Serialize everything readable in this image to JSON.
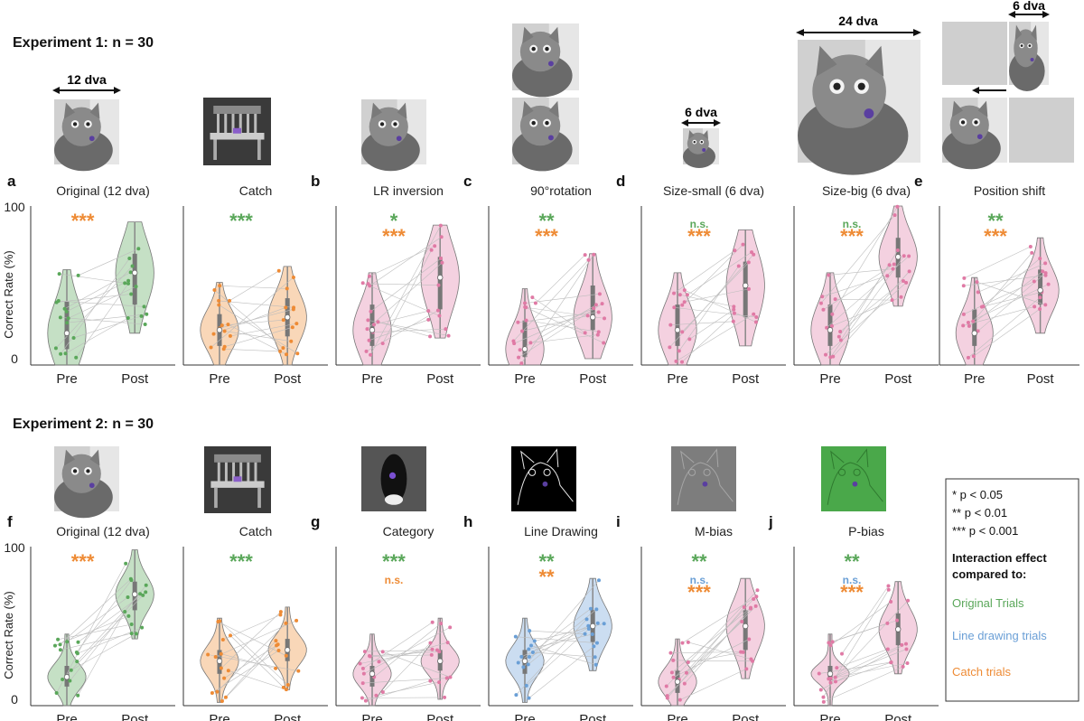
{
  "experiment1": {
    "title": "Experiment 1: n = 30"
  },
  "experiment2": {
    "title": "Experiment 2: n = 30"
  },
  "dims": {
    "d12": "12 dva",
    "d6": "6 dva",
    "d24": "24 dva",
    "d6b": "6 dva"
  },
  "legend": {
    "lines": [
      "* p < 0.05",
      "** p < 0.01",
      "*** p < 0.001"
    ],
    "header1": "Interaction effect",
    "header2": "compared to:",
    "items": [
      {
        "label": "Original Trials",
        "color": "#5aa75a"
      },
      {
        "label": "Line drawing trials",
        "color": "#6a9fd6"
      },
      {
        "label": "Catch trials",
        "color": "#ee8b35"
      }
    ]
  },
  "colors": {
    "green": "#5aa75a",
    "orange": "#ee8b35",
    "pink": "#e07aa5",
    "blue": "#6a9fd6"
  },
  "chart_data": [
    {
      "type": "violin",
      "letter": "a",
      "title": "Original (12 dva)",
      "ylabel": "Correct Rate (%)",
      "ylim": [
        0,
        100
      ],
      "yticks": [
        "0",
        "100"
      ],
      "categories": [
        "Pre",
        "Post"
      ],
      "series": [
        {
          "values": [
            {
              "median": 20,
              "q1": 10,
              "q3": 40
            },
            {
              "median": 58,
              "q1": 38,
              "q3": 70
            }
          ]
        }
      ],
      "annotations": [
        {
          "text": "***",
          "color": "orange"
        }
      ]
    },
    {
      "type": "violin",
      "letter": "",
      "title": "Catch",
      "ylim": [
        0,
        100
      ],
      "categories": [
        "Pre",
        "Post"
      ],
      "series": [
        {
          "values": [
            {
              "median": 22,
              "q1": 12,
              "q3": 32
            },
            {
              "median": 30,
              "q1": 18,
              "q3": 42
            }
          ]
        }
      ],
      "annotations": [
        {
          "text": "***",
          "color": "green"
        }
      ]
    },
    {
      "type": "violin",
      "letter": "b",
      "title": "LR inversion",
      "ylim": [
        0,
        100
      ],
      "categories": [
        "Pre",
        "Post"
      ],
      "series": [
        {
          "values": [
            {
              "median": 22,
              "q1": 12,
              "q3": 38
            },
            {
              "median": 55,
              "q1": 35,
              "q3": 68
            }
          ]
        }
      ],
      "annotations": [
        {
          "text": "*",
          "color": "green"
        },
        {
          "text": "***",
          "color": "orange"
        }
      ]
    },
    {
      "type": "violin",
      "letter": "c",
      "title": "90°rotation",
      "ylim": [
        0,
        100
      ],
      "categories": [
        "Pre",
        "Post"
      ],
      "series": [
        {
          "values": [
            {
              "median": 10,
              "q1": 5,
              "q3": 28
            },
            {
              "median": 30,
              "q1": 22,
              "q3": 50
            }
          ]
        }
      ],
      "annotations": [
        {
          "text": "**",
          "color": "green"
        },
        {
          "text": "***",
          "color": "orange"
        }
      ]
    },
    {
      "type": "violin",
      "letter": "d",
      "title": "Size-small (6 dva)",
      "ylim": [
        0,
        100
      ],
      "categories": [
        "Pre",
        "Post"
      ],
      "series": [
        {
          "values": [
            {
              "median": 22,
              "q1": 12,
              "q3": 38
            },
            {
              "median": 50,
              "q1": 30,
              "q3": 65
            }
          ]
        }
      ],
      "annotations": [
        {
          "text": "n.s.",
          "color": "green"
        },
        {
          "text": "***",
          "color": "orange"
        }
      ]
    },
    {
      "type": "violin",
      "letter": "",
      "title": "Size-big (6 dva)",
      "ylim": [
        0,
        100
      ],
      "categories": [
        "Pre",
        "Post"
      ],
      "series": [
        {
          "values": [
            {
              "median": 22,
              "q1": 12,
              "q3": 38
            },
            {
              "median": 68,
              "q1": 55,
              "q3": 80
            }
          ]
        }
      ],
      "annotations": [
        {
          "text": "n.s.",
          "color": "green"
        },
        {
          "text": "***",
          "color": "orange"
        }
      ]
    },
    {
      "type": "violin",
      "letter": "e",
      "title": "Position shift",
      "ylim": [
        0,
        100
      ],
      "categories": [
        "Pre",
        "Post"
      ],
      "series": [
        {
          "values": [
            {
              "median": 20,
              "q1": 12,
              "q3": 35
            },
            {
              "median": 47,
              "q1": 38,
              "q3": 60
            }
          ]
        }
      ],
      "annotations": [
        {
          "text": "**",
          "color": "green"
        },
        {
          "text": "***",
          "color": "orange"
        }
      ]
    },
    {
      "type": "violin",
      "letter": "f",
      "title": "Original (12 dva)",
      "ylabel": "Correct Rate (%)",
      "ylim": [
        0,
        100
      ],
      "yticks": [
        "0",
        "100"
      ],
      "categories": [
        "Pre",
        "Post"
      ],
      "series": [
        {
          "values": [
            {
              "median": 18,
              "q1": 12,
              "q3": 25
            },
            {
              "median": 70,
              "q1": 60,
              "q3": 78
            }
          ]
        }
      ],
      "annotations": [
        {
          "text": "***",
          "color": "orange"
        }
      ]
    },
    {
      "type": "violin",
      "letter": "",
      "title": "Catch",
      "ylim": [
        0,
        100
      ],
      "categories": [
        "Pre",
        "Post"
      ],
      "series": [
        {
          "values": [
            {
              "median": 28,
              "q1": 20,
              "q3": 35
            },
            {
              "median": 35,
              "q1": 28,
              "q3": 42
            }
          ]
        }
      ],
      "annotations": [
        {
          "text": "***",
          "color": "green"
        }
      ]
    },
    {
      "type": "violin",
      "letter": "g",
      "title": "Category",
      "ylim": [
        0,
        100
      ],
      "categories": [
        "Pre",
        "Post"
      ],
      "series": [
        {
          "values": [
            {
              "median": 20,
              "q1": 12,
              "q3": 25
            },
            {
              "median": 28,
              "q1": 22,
              "q3": 35
            }
          ]
        }
      ],
      "annotations": [
        {
          "text": "***",
          "color": "green"
        },
        {
          "text": "n.s.",
          "color": "orange"
        }
      ]
    },
    {
      "type": "violin",
      "letter": "h",
      "title": "Line Drawing",
      "ylim": [
        0,
        100
      ],
      "categories": [
        "Pre",
        "Post"
      ],
      "series": [
        {
          "values": [
            {
              "median": 28,
              "q1": 20,
              "q3": 35
            },
            {
              "median": 50,
              "q1": 40,
              "q3": 60
            }
          ]
        }
      ],
      "annotations": [
        {
          "text": "**",
          "color": "green"
        },
        {
          "text": "**",
          "color": "orange"
        }
      ]
    },
    {
      "type": "violin",
      "letter": "i",
      "title": "M-bias",
      "ylim": [
        0,
        100
      ],
      "categories": [
        "Pre",
        "Post"
      ],
      "series": [
        {
          "values": [
            {
              "median": 15,
              "q1": 8,
              "q3": 22
            },
            {
              "median": 50,
              "q1": 35,
              "q3": 60
            }
          ]
        }
      ],
      "annotations": [
        {
          "text": "**",
          "color": "green"
        },
        {
          "text": "n.s.",
          "color": "blue"
        },
        {
          "text": "***",
          "color": "orange"
        }
      ]
    },
    {
      "type": "violin",
      "letter": "j",
      "title": "P-bias",
      "ylim": [
        0,
        100
      ],
      "categories": [
        "Pre",
        "Post"
      ],
      "series": [
        {
          "values": [
            {
              "median": 20,
              "q1": 16,
              "q3": 25
            },
            {
              "median": 48,
              "q1": 38,
              "q3": 58
            }
          ]
        }
      ],
      "annotations": [
        {
          "text": "**",
          "color": "green"
        },
        {
          "text": "n.s.",
          "color": "blue"
        },
        {
          "text": "***",
          "color": "orange"
        }
      ]
    }
  ]
}
